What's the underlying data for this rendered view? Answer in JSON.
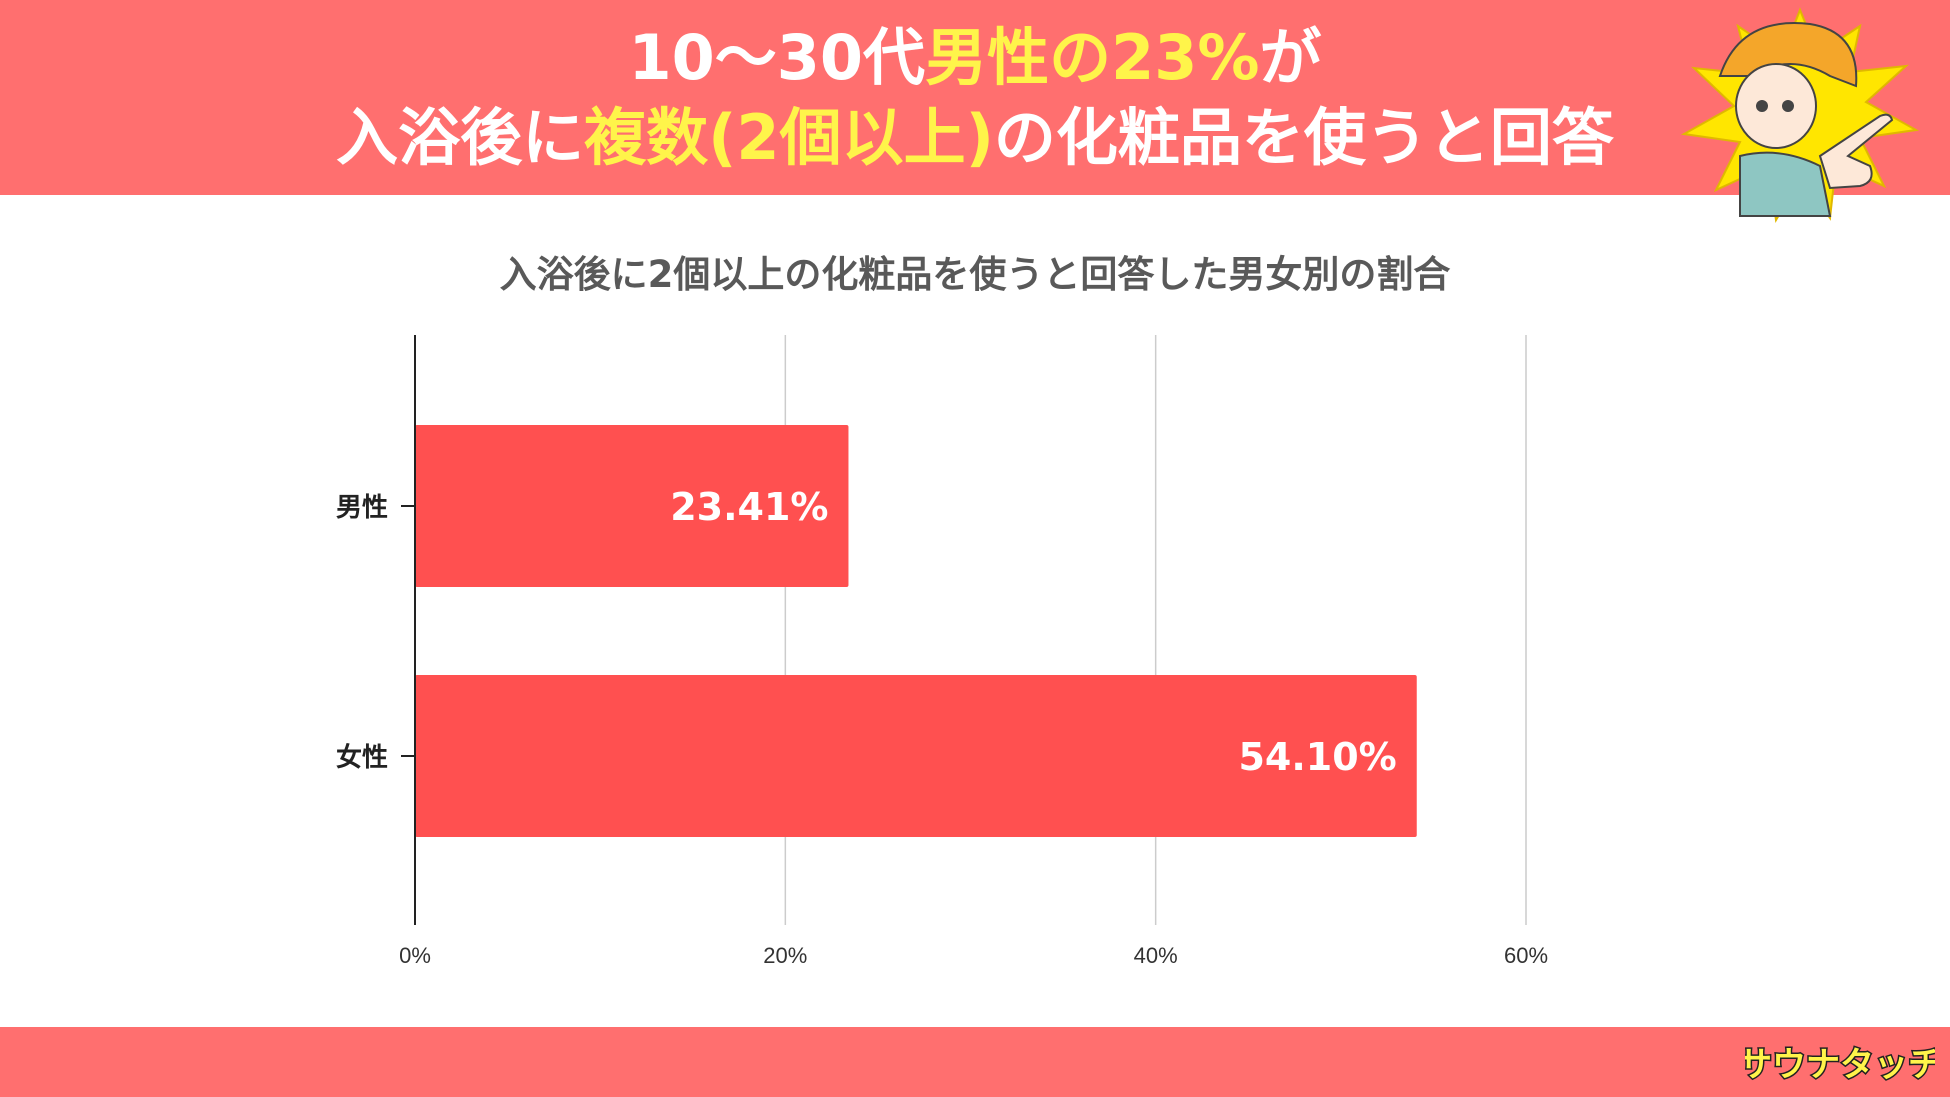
{
  "header": {
    "line1": {
      "part1": "10〜30代",
      "part2": "男性の23%",
      "part3": "が"
    },
    "line2": {
      "part1": "入浴後に",
      "part2": "複数(2個以上)",
      "part3": "の化粧品を使うと回答"
    }
  },
  "brand": {
    "logo_text": "サウナタッチ"
  },
  "colors": {
    "header_bg": "#ff6f6f",
    "highlight": "#fff44a",
    "bar": "#ff5050"
  },
  "chart_data": {
    "type": "bar",
    "orientation": "horizontal",
    "title": "入浴後に2個以上の化粧品を使うと回答した男女別の割合",
    "categories": [
      "男性",
      "女性"
    ],
    "values": [
      23.41,
      54.1
    ],
    "value_labels": [
      "23.41%",
      "54.10%"
    ],
    "xlim": [
      0,
      60
    ],
    "x_ticks": [
      0,
      20,
      40,
      60
    ],
    "x_tick_labels": [
      "0%",
      "20%",
      "40%",
      "60%"
    ],
    "grid": true,
    "xlabel": "",
    "ylabel": ""
  }
}
